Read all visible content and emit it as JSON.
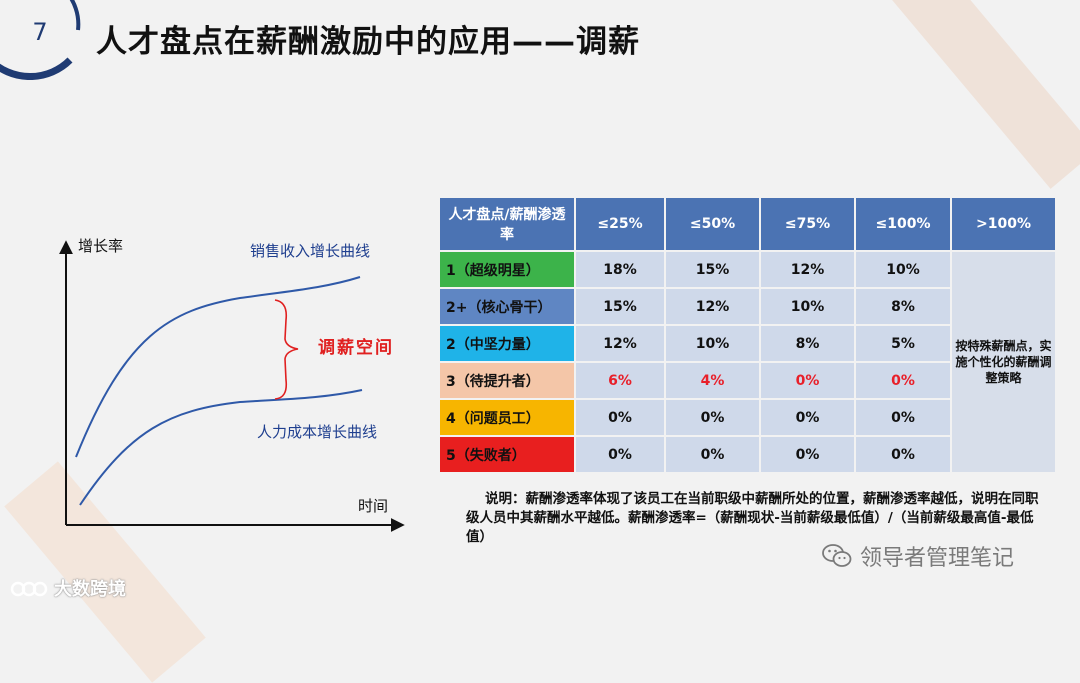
{
  "header": {
    "slide_number": "7",
    "title": "人才盘点在薪酬激励中的应用——调薪"
  },
  "chart": {
    "y_axis_label": "增长率",
    "x_axis_label": "时间",
    "upper_curve_label": "销售收入增长曲线",
    "lower_curve_label": "人力成本增长曲线",
    "gap_label": "调薪空间",
    "colors": {
      "curve": "#2f59a8",
      "label": "#1f3f8f",
      "gap": "#e02020",
      "axis": "#111111"
    }
  },
  "table": {
    "corner_header": "人才盘点/薪酬渗透率",
    "columns": [
      "≤25%",
      "≤50%",
      "≤75%",
      "≤100%",
      ">100%"
    ],
    "rows": [
      {
        "level": "1（超级明星）",
        "color": "#3cb34a",
        "values": [
          "18%",
          "15%",
          "12%",
          "10%"
        ],
        "red": false
      },
      {
        "level": "2+（核心骨干）",
        "color": "#5f86c3",
        "values": [
          "15%",
          "12%",
          "10%",
          "8%"
        ],
        "red": false
      },
      {
        "level": "2（中坚力量）",
        "color": "#1fb3e8",
        "values": [
          "12%",
          "10%",
          "8%",
          "5%"
        ],
        "red": false
      },
      {
        "level": "3（待提升者）",
        "color": "#f4c6a8",
        "values": [
          "6%",
          "4%",
          "0%",
          "0%"
        ],
        "red": true
      },
      {
        "level": "4（问题员工）",
        "color": "#f7b500",
        "values": [
          "0%",
          "0%",
          "0%",
          "0%"
        ],
        "red": false
      },
      {
        "level": "5（失败者）",
        "color": "#e81f1f",
        "values": [
          "0%",
          "0%",
          "0%",
          "0%"
        ],
        "red": false
      }
    ],
    "strategy_note": "按特殊薪酬点，实施个性化的薪酬调整策略",
    "colors": {
      "header": "#4b73b3",
      "cell": "#cfd9ea",
      "red_text": "#e8202a"
    }
  },
  "note": "说明：薪酬渗透率体现了该员工在当前职级中薪酬所处的位置，薪酬渗透率越低，说明在同职级人员中其薪酬水平越低。薪酬渗透率=（薪酬现状-当前薪级最低值）/（当前薪级最高值-最低值）",
  "watermarks": {
    "wechat": "领导者管理笔记",
    "brand": "大数跨境"
  }
}
